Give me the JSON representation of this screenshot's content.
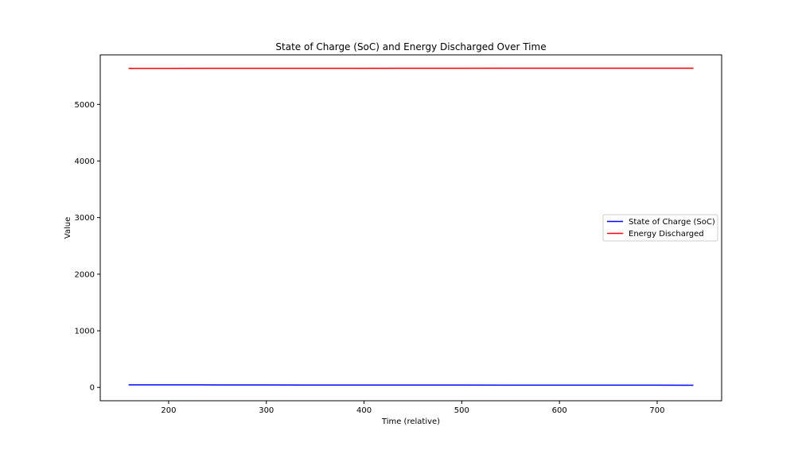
{
  "chart_data": {
    "type": "line",
    "title": "State of Charge (SoC) and Energy Discharged Over Time",
    "xlabel": "Time (relative)",
    "ylabel": "Value",
    "xlim": [
      130,
      766
    ],
    "ylim": [
      -236,
      5875
    ],
    "xticks": [
      200,
      300,
      400,
      500,
      600,
      700
    ],
    "yticks": [
      0,
      1000,
      2000,
      3000,
      4000,
      5000
    ],
    "grid": false,
    "legend_position": "center-right",
    "series": [
      {
        "name": "State of Charge (SoC)",
        "color": "#0000ff",
        "x": [
          159,
          200,
          250,
          300,
          350,
          400,
          450,
          500,
          550,
          600,
          650,
          700,
          737
        ],
        "y": [
          45,
          45,
          44,
          43,
          42,
          42,
          41,
          41,
          40,
          40,
          39,
          39,
          38
        ]
      },
      {
        "name": "Energy Discharged",
        "color": "#ff0000",
        "x": [
          159,
          200,
          250,
          300,
          350,
          400,
          450,
          500,
          550,
          600,
          650,
          700,
          737
        ],
        "y": [
          5635,
          5635,
          5636,
          5636,
          5637,
          5637,
          5638,
          5638,
          5639,
          5639,
          5640,
          5640,
          5640
        ]
      }
    ]
  }
}
